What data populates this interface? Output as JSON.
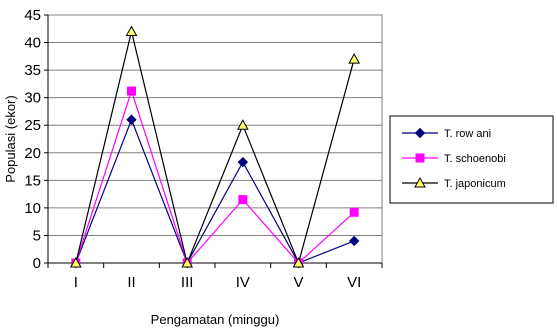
{
  "chart_data": {
    "type": "line",
    "xlabel": "Pengamatan (minggu)",
    "ylabel": "Populasi (ekor)",
    "categories": [
      "I",
      "II",
      "III",
      "IV",
      "V",
      "VI"
    ],
    "ylim": [
      0,
      45
    ],
    "yticks": [
      0,
      5,
      10,
      15,
      20,
      25,
      30,
      35,
      40,
      45
    ],
    "grid": true,
    "legend_position": "right",
    "series": [
      {
        "name": "T. row ani",
        "color": "#000080",
        "marker": "diamond",
        "values": [
          0,
          26,
          0,
          18.3,
          0,
          4
        ]
      },
      {
        "name": "T. schoenobi",
        "color": "#ff00ff",
        "marker": "square",
        "values": [
          0,
          31.2,
          0,
          11.5,
          0,
          9.2
        ]
      },
      {
        "name": "T. japonicum",
        "color": "#000000",
        "marker": "triangle",
        "marker_fill": "#ffff66",
        "values": [
          0,
          42,
          0,
          25,
          0,
          37
        ]
      }
    ]
  }
}
